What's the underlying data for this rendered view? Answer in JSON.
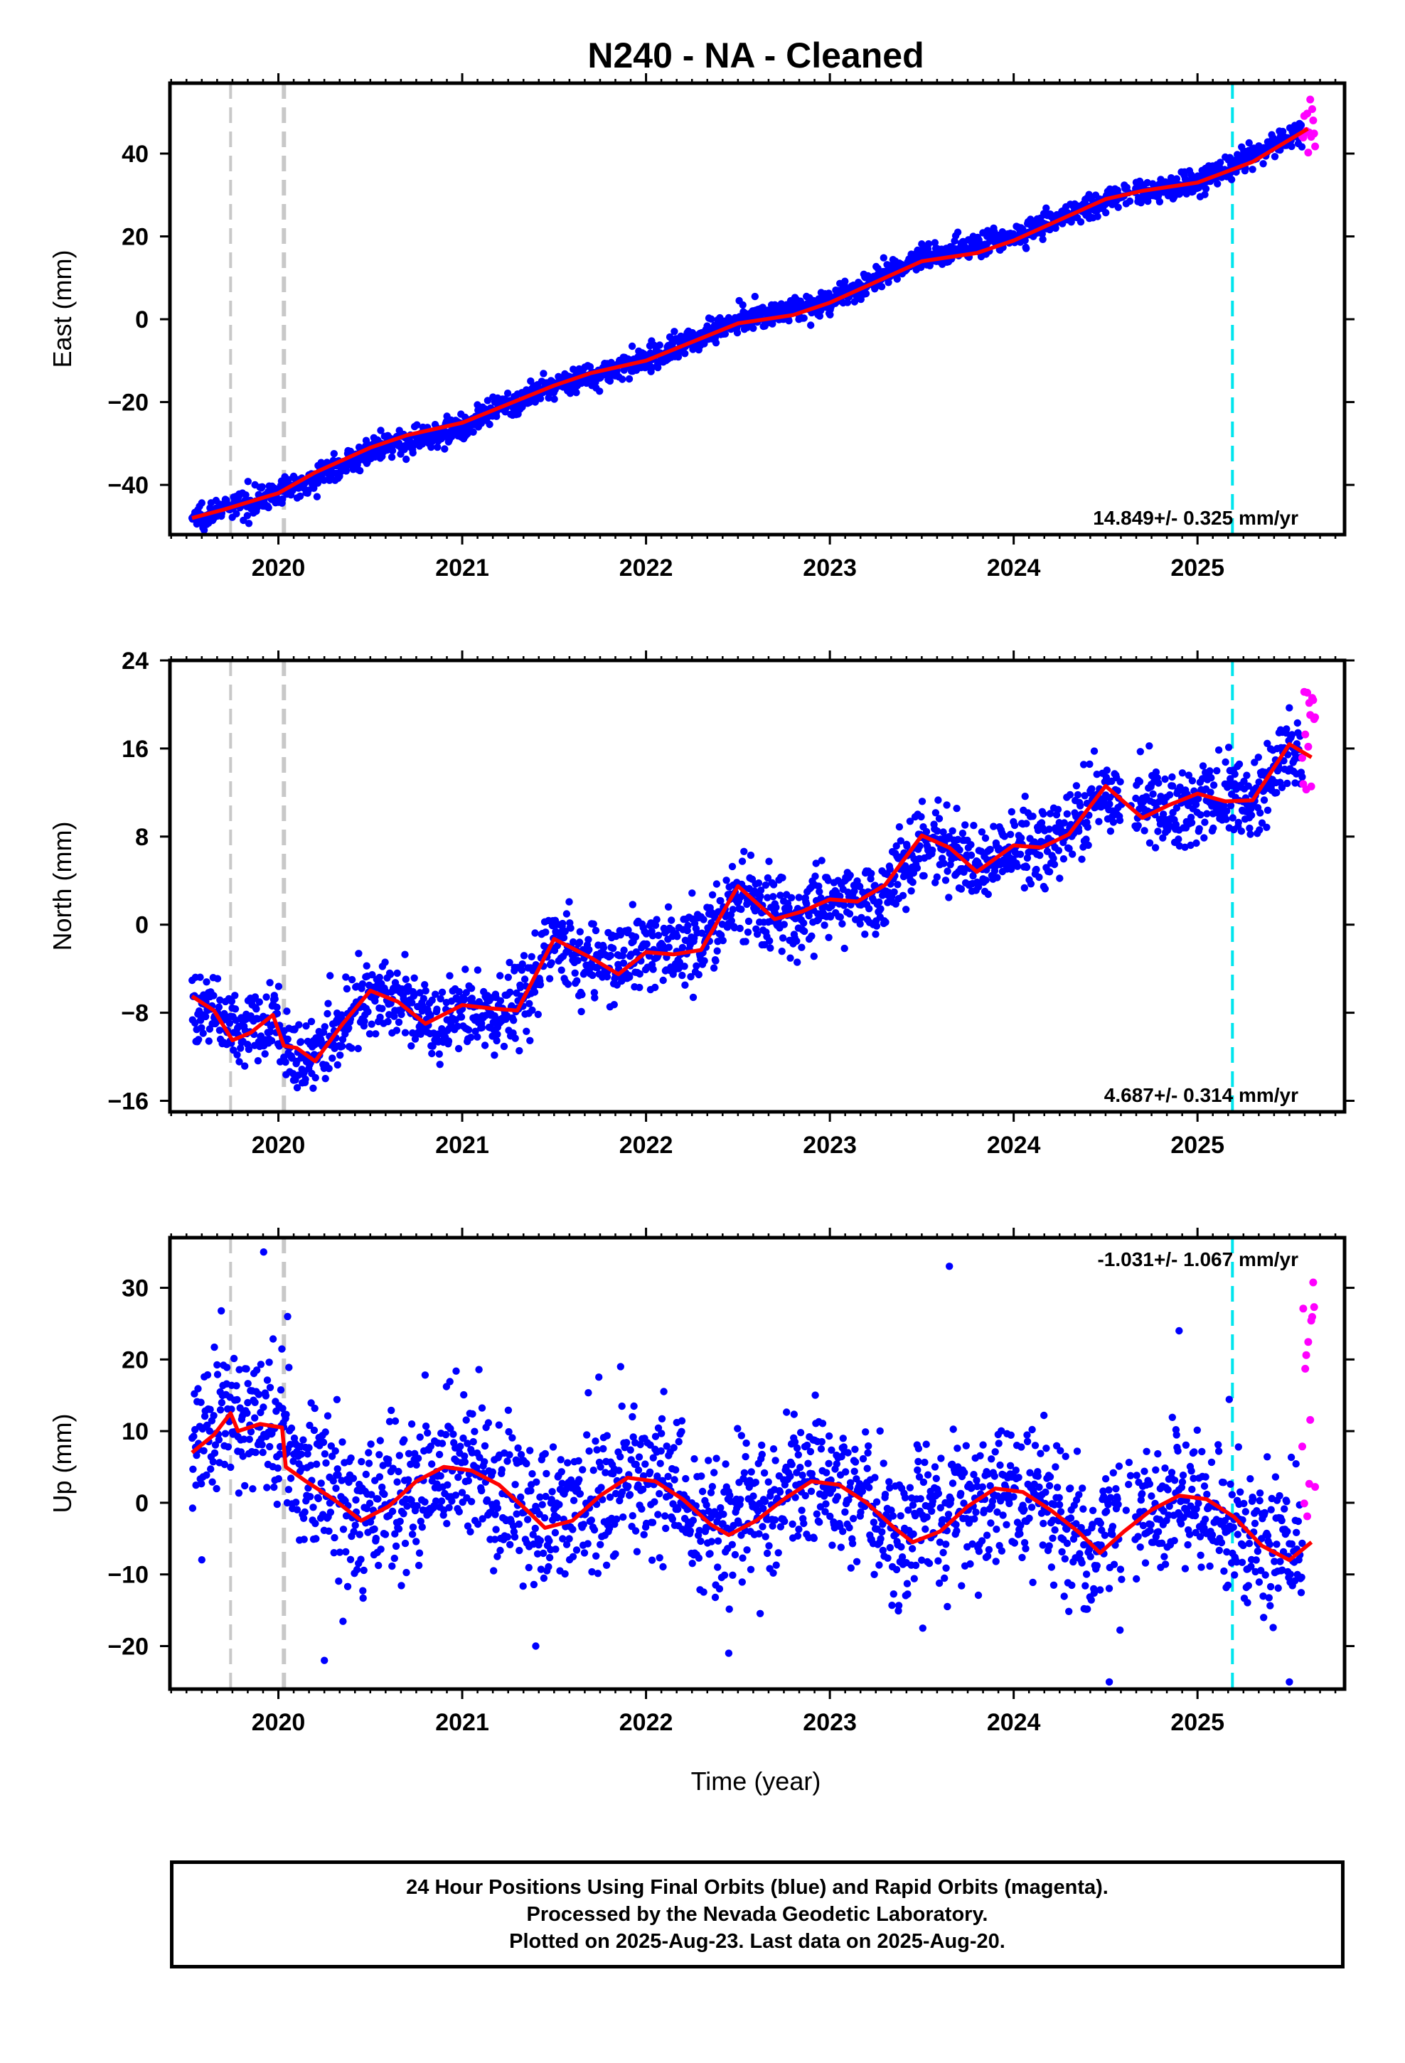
{
  "title": "N240  - NA - Cleaned",
  "xlabel": "Time (year)",
  "caption": {
    "line1": "24 Hour Positions Using Final Orbits (blue) and Rapid Orbits (magenta).",
    "line2": "Processed by the Nevada Geodetic Laboratory.",
    "line3": "Plotted on 2025-Aug-23. Last data on 2025-Aug-20."
  },
  "colors": {
    "final_points": "#0000ff",
    "rapid_points": "#ff00ff",
    "model": "#ff0000",
    "event_grey": "#c8c8c8",
    "event_cyan": "#00e5ee"
  },
  "chart_data": [
    {
      "type": "scatter",
      "ylabel": "East (mm)",
      "xlim": [
        2019.41,
        2025.8
      ],
      "ylim": [
        -52,
        57
      ],
      "xticks": [
        2020,
        2021,
        2022,
        2023,
        2024,
        2025
      ],
      "yticks": [
        -40,
        -20,
        0,
        20,
        40
      ],
      "rate_label": "14.849+/- 0.325 mm/yr",
      "rate_position": "bottom-right",
      "grey_event_lines": [
        2019.74,
        2020.03
      ],
      "cyan_event_lines": [
        2025.19
      ],
      "final_span": [
        2019.53,
        2025.57
      ],
      "rapid_span": [
        2025.57,
        2025.64
      ],
      "final_count": 1900,
      "rapid_count": 14,
      "noise_sd": 1.5,
      "trend": {
        "t": [
          2019.53,
          2020.0,
          2020.5,
          2021.0,
          2021.5,
          2022.0,
          2022.5,
          2023.0,
          2023.5,
          2024.0,
          2024.5,
          2025.0,
          2025.6
        ],
        "y": [
          -48,
          -42,
          -32,
          -26,
          -16,
          -10,
          0,
          4,
          15,
          20,
          29,
          33,
          46
        ]
      },
      "model": {
        "t": [
          2019.53,
          2019.7,
          2020.0,
          2020.2,
          2020.5,
          2020.7,
          2021.0,
          2021.5,
          2021.7,
          2022.0,
          2022.5,
          2022.8,
          2023.0,
          2023.5,
          2023.8,
          2024.0,
          2024.5,
          2024.7,
          2025.0,
          2025.3,
          2025.6
        ],
        "y": [
          -48,
          -46,
          -42,
          -37,
          -31,
          -28,
          -25,
          -16,
          -13,
          -10,
          -1,
          1,
          4,
          14,
          16,
          19,
          29,
          31,
          33,
          38,
          46
        ]
      },
      "rapid_range": [
        40,
        55
      ],
      "outliers": []
    },
    {
      "type": "scatter",
      "ylabel": "North (mm)",
      "xlim": [
        2019.41,
        2025.8
      ],
      "ylim": [
        -17,
        24
      ],
      "xticks": [
        2020,
        2021,
        2022,
        2023,
        2024,
        2025
      ],
      "yticks": [
        -16,
        -8,
        0,
        8,
        16,
        24
      ],
      "rate_label": "4.687+/- 0.314 mm/yr",
      "rate_position": "bottom-right",
      "grey_event_lines": [
        2019.74,
        2020.03
      ],
      "cyan_event_lines": [
        2025.19
      ],
      "final_span": [
        2019.53,
        2025.57
      ],
      "rapid_span": [
        2025.57,
        2025.64
      ],
      "final_count": 1900,
      "rapid_count": 14,
      "noise_sd": 1.7,
      "trend": {
        "t": [
          2019.53,
          2019.65,
          2019.8,
          2019.95,
          2020.0,
          2020.03,
          2020.2,
          2020.35,
          2020.5,
          2020.7,
          2020.85,
          2021.0,
          2021.2,
          2021.35,
          2021.5,
          2021.75,
          2022.0,
          2022.2,
          2022.35,
          2022.5,
          2022.8,
          2023.0,
          2023.2,
          2023.35,
          2023.5,
          2023.8,
          2024.0,
          2024.2,
          2024.35,
          2024.5,
          2024.8,
          2025.0,
          2025.2,
          2025.35,
          2025.5,
          2025.6
        ],
        "y": [
          -7,
          -8,
          -10,
          -9,
          -8,
          -11,
          -12,
          -9,
          -6,
          -7,
          -9,
          -8,
          -8,
          -7,
          -1,
          -4,
          -2,
          -2,
          -1,
          3,
          0,
          2,
          2,
          4,
          8,
          5,
          7,
          7,
          10,
          12,
          10,
          11,
          11,
          12,
          16,
          15
        ]
      },
      "model": {
        "t": [
          2019.53,
          2019.65,
          2019.75,
          2019.85,
          2019.97,
          2020.03,
          2020.1,
          2020.2,
          2020.35,
          2020.5,
          2020.65,
          2020.8,
          2021.0,
          2021.15,
          2021.3,
          2021.5,
          2021.7,
          2021.85,
          2022.0,
          2022.15,
          2022.3,
          2022.5,
          2022.7,
          2022.85,
          2023.0,
          2023.15,
          2023.3,
          2023.5,
          2023.65,
          2023.8,
          2024.0,
          2024.15,
          2024.3,
          2024.5,
          2024.7,
          2024.85,
          2025.0,
          2025.15,
          2025.3,
          2025.5,
          2025.62
        ],
        "y": [
          -6.5,
          -7.8,
          -10.5,
          -9.8,
          -8.2,
          -11,
          -11.2,
          -12.4,
          -9,
          -6,
          -7,
          -9,
          -7.3,
          -7.6,
          -7.8,
          -1.3,
          -3,
          -4.5,
          -2.5,
          -2.7,
          -2.3,
          3.5,
          0.5,
          1.2,
          2.3,
          2.1,
          3.6,
          8.1,
          7,
          4.8,
          7.2,
          7,
          8.2,
          12.6,
          9.7,
          10.9,
          11.9,
          11.2,
          11.3,
          16.4,
          15.2
        ]
      },
      "rapid_range": [
        12,
        23
      ],
      "outliers": []
    },
    {
      "type": "scatter",
      "ylabel": "Up (mm)",
      "xlim": [
        2019.41,
        2025.8
      ],
      "ylim": [
        -26,
        37
      ],
      "xticks": [
        2020,
        2021,
        2022,
        2023,
        2024,
        2025
      ],
      "yticks": [
        -20,
        -10,
        0,
        10,
        20,
        30
      ],
      "rate_label": "-1.031+/- 1.067 mm/yr",
      "rate_position": "top-right",
      "grey_event_lines": [
        2019.74,
        2020.03
      ],
      "cyan_event_lines": [
        2025.19
      ],
      "final_span": [
        2019.53,
        2025.57
      ],
      "rapid_span": [
        2025.57,
        2025.64
      ],
      "final_count": 1900,
      "rapid_count": 14,
      "noise_sd": 5.2,
      "trend": {
        "t": [
          2019.53,
          2019.74,
          2019.9,
          2020.03,
          2020.1,
          2020.2,
          2020.3,
          2020.45,
          2020.7,
          2020.9,
          2021.15,
          2021.4,
          2021.65,
          2021.9,
          2022.15,
          2022.4,
          2022.65,
          2022.9,
          2023.15,
          2023.4,
          2023.65,
          2023.9,
          2024.15,
          2024.4,
          2024.65,
          2024.9,
          2025.15,
          2025.4,
          2025.6
        ],
        "y": [
          7,
          12,
          11,
          10,
          5,
          3,
          1,
          -2,
          2,
          5,
          3,
          -3,
          0,
          4,
          1,
          -4,
          0,
          3,
          1,
          -5,
          -1,
          2,
          0,
          -6,
          -2,
          1,
          -2,
          -7,
          -6
        ]
      },
      "model": {
        "t": [
          2019.53,
          2019.65,
          2019.74,
          2019.78,
          2019.9,
          2020.02,
          2020.04,
          2020.15,
          2020.3,
          2020.45,
          2020.6,
          2020.75,
          2020.9,
          2021.05,
          2021.2,
          2021.35,
          2021.45,
          2021.6,
          2021.75,
          2021.9,
          2022.05,
          2022.2,
          2022.35,
          2022.45,
          2022.6,
          2022.75,
          2022.9,
          2023.05,
          2023.2,
          2023.35,
          2023.45,
          2023.6,
          2023.75,
          2023.9,
          2024.05,
          2024.2,
          2024.35,
          2024.47,
          2024.6,
          2024.75,
          2024.9,
          2025.05,
          2025.2,
          2025.35,
          2025.5,
          2025.62
        ],
        "y": [
          7,
          9.5,
          12.5,
          10,
          11,
          10.5,
          5,
          3,
          0.5,
          -2.5,
          -0.5,
          3,
          5,
          4.5,
          2.5,
          -1,
          -3.5,
          -2.5,
          1,
          3.5,
          3,
          0.5,
          -3,
          -4.5,
          -2.5,
          0.5,
          3,
          2.5,
          0,
          -3.5,
          -5.5,
          -4,
          -0.5,
          2,
          1.5,
          -1,
          -4,
          -7,
          -4,
          -1,
          1,
          0.5,
          -2,
          -6,
          -8,
          -5.5
        ]
      },
      "rapid_range": [
        -2,
        31
      ],
      "outliers": [
        [
          2019.92,
          35
        ],
        [
          2023.65,
          33
        ],
        [
          2024.9,
          24
        ],
        [
          2020.05,
          26
        ],
        [
          2020.25,
          -22
        ],
        [
          2024.52,
          -25
        ],
        [
          2025.5,
          -25
        ],
        [
          2022.45,
          -21
        ],
        [
          2021.4,
          -20
        ]
      ]
    }
  ]
}
